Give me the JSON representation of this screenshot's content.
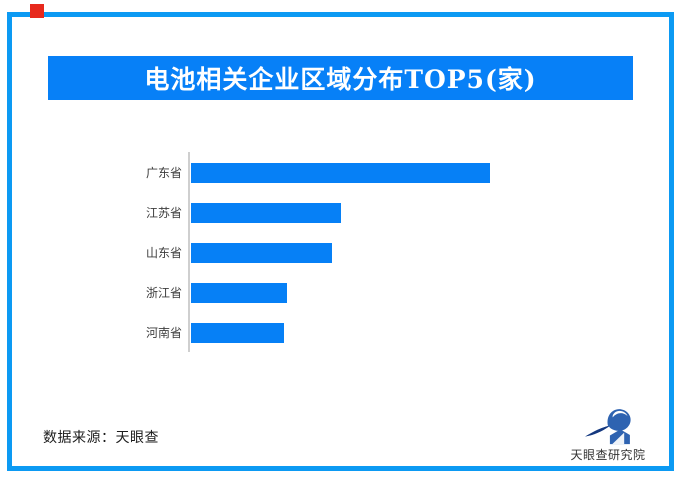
{
  "decor": {
    "red_square_color": "#E7291D"
  },
  "frame": {
    "border_color": "#0C9AF3"
  },
  "header": {
    "title": "电池相关企业区域分布TOP5(家)",
    "bg_color": "#0780F7",
    "text_color": "#FFFFFF"
  },
  "chart_data": {
    "type": "bar",
    "orientation": "horizontal",
    "title": "电池相关企业区域分布TOP5(家)",
    "categories": [
      "广东省",
      "江苏省",
      "山东省",
      "浙江省",
      "河南省"
    ],
    "values_pct_of_max": [
      100,
      50,
      47,
      32,
      31
    ],
    "bar_color": "#0680F6",
    "axis_line_color": "#CFCFCF",
    "legend": "none",
    "grid": "off",
    "value_labels_shown": false,
    "xlabel": "",
    "ylabel": "",
    "note": "No numeric axis or data labels shown in image; values are bar lengths relative to the longest bar (Guangdong = 100)"
  },
  "footer": {
    "source_text": "数据来源：天眼查",
    "logo_text": "天眼查研究院",
    "logo_colors": {
      "primary": "#2E63B1",
      "dark": "#16387E"
    }
  }
}
